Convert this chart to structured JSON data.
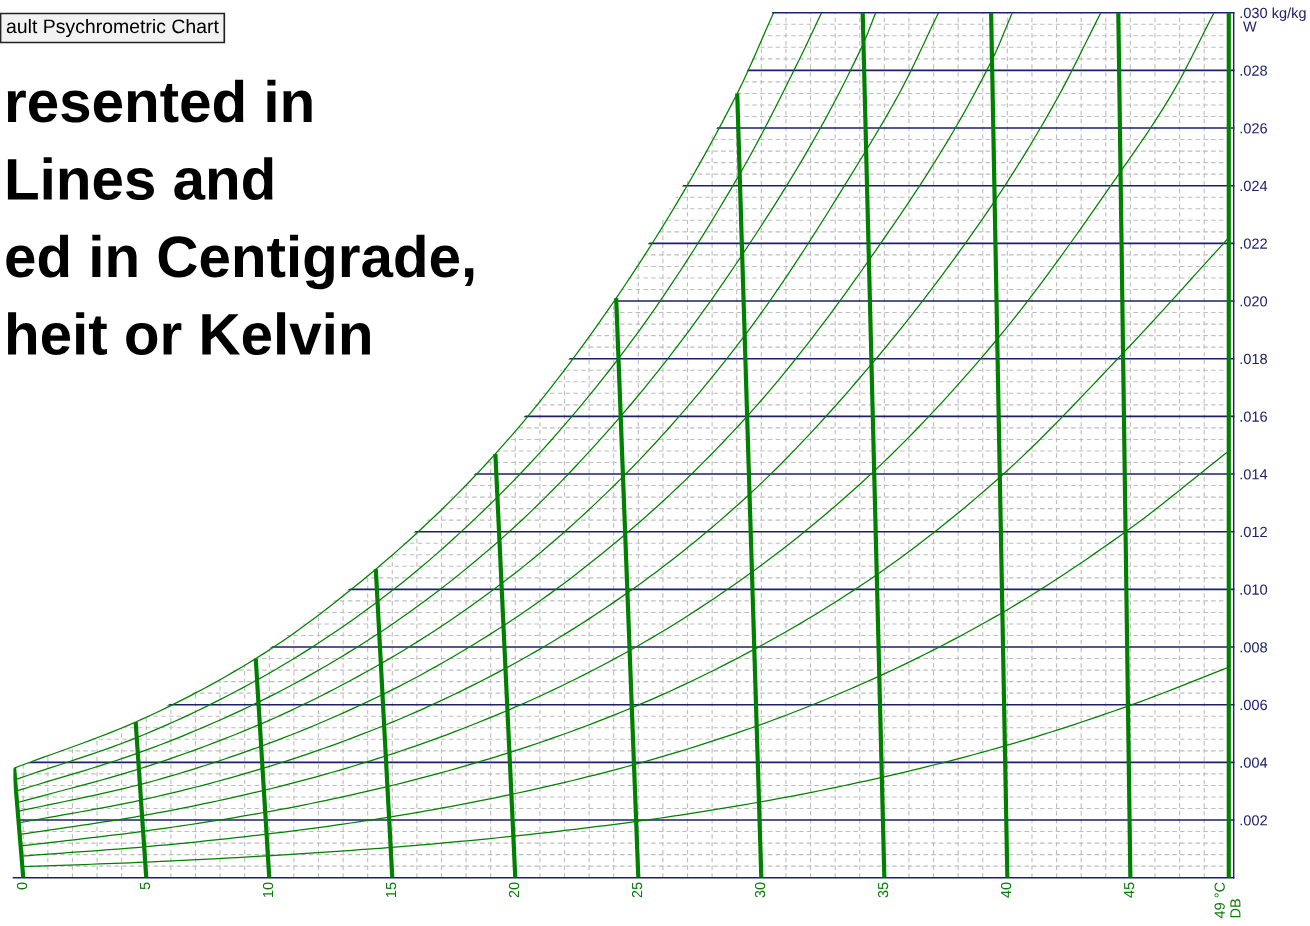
{
  "chart_data": {
    "type": "line",
    "title": "ault Psychrometric Chart",
    "annotations": [
      "resented in",
      "Lines and",
      "ed in Centigrade,",
      "heit or Kelvin"
    ],
    "ylabel": "W",
    "xlim": [
      -0.4,
      49.2
    ],
    "ylim": [
      0,
      0.03
    ],
    "xticks": [
      0,
      {
        "value": 1,
        "label": null
      },
      {
        "value": 2,
        "label": null
      },
      {
        "value": 3,
        "label": null
      },
      {
        "value": 4,
        "label": null
      },
      5,
      {
        "value": 6,
        "label": null
      },
      {
        "value": 7,
        "label": null
      },
      {
        "value": 8,
        "label": null
      },
      {
        "value": 9,
        "label": null
      },
      10,
      {
        "value": 11,
        "label": null
      },
      {
        "value": 12,
        "label": null
      },
      {
        "value": 13,
        "label": null
      },
      {
        "value": 14,
        "label": null
      },
      15,
      {
        "value": 16,
        "label": null
      },
      {
        "value": 17,
        "label": null
      },
      {
        "value": 18,
        "label": null
      },
      {
        "value": 19,
        "label": null
      },
      20,
      {
        "value": 21,
        "label": null
      },
      {
        "value": 22,
        "label": null
      },
      {
        "value": 23,
        "label": null
      },
      {
        "value": 24,
        "label": null
      },
      25,
      {
        "value": 26,
        "label": null
      },
      {
        "value": 27,
        "label": null
      },
      {
        "value": 28,
        "label": null
      },
      {
        "value": 29,
        "label": null
      },
      30,
      {
        "value": 31,
        "label": null
      },
      {
        "value": 32,
        "label": null
      },
      {
        "value": 33,
        "label": null
      },
      {
        "value": 34,
        "label": null
      },
      35,
      {
        "value": 36,
        "label": null
      },
      {
        "value": 37,
        "label": null
      },
      {
        "value": 38,
        "label": null
      },
      {
        "value": 39,
        "label": null
      },
      40,
      {
        "value": 41,
        "label": null
      },
      {
        "value": 42,
        "label": null
      },
      {
        "value": 43,
        "label": null
      },
      {
        "value": 44,
        "label": null
      },
      45,
      {
        "value": 46,
        "label": null
      },
      {
        "value": 47,
        "label": null
      },
      {
        "value": 48,
        "label": null
      },
      {
        "value": 49,
        "label": "49 °C\nDB"
      }
    ],
    "yticks": [
      {
        "value": 0.0004,
        "label": null
      },
      {
        "value": 0.0008,
        "label": null
      },
      {
        "value": 0.0012,
        "label": null
      },
      {
        "value": 0.0016,
        "label": null
      },
      {
        "value": 0.002,
        "label": ".002"
      },
      {
        "value": 0.0024,
        "label": null
      },
      {
        "value": 0.0028,
        "label": null
      },
      {
        "value": 0.0032,
        "label": null
      },
      {
        "value": 0.0036,
        "label": null
      },
      {
        "value": 0.004,
        "label": ".004"
      },
      {
        "value": 0.0044,
        "label": null
      },
      {
        "value": 0.0048,
        "label": null
      },
      {
        "value": 0.0052,
        "label": null
      },
      {
        "value": 0.0056,
        "label": null
      },
      {
        "value": 0.006,
        "label": ".006"
      },
      {
        "value": 0.0064,
        "label": null
      },
      {
        "value": 0.0068,
        "label": null
      },
      {
        "value": 0.0072,
        "label": null
      },
      {
        "value": 0.0076,
        "label": null
      },
      {
        "value": 0.008,
        "label": ".008"
      },
      {
        "value": 0.0084,
        "label": null
      },
      {
        "value": 0.0088,
        "label": null
      },
      {
        "value": 0.0092,
        "label": null
      },
      {
        "value": 0.0096,
        "label": null
      },
      {
        "value": 0.01,
        "label": ".010"
      },
      {
        "value": 0.0104,
        "label": null
      },
      {
        "value": 0.0108,
        "label": null
      },
      {
        "value": 0.0112,
        "label": null
      },
      {
        "value": 0.0116,
        "label": null
      },
      {
        "value": 0.012,
        "label": ".012"
      },
      {
        "value": 0.0124,
        "label": null
      },
      {
        "value": 0.0128,
        "label": null
      },
      {
        "value": 0.0132,
        "label": null
      },
      {
        "value": 0.0136,
        "label": null
      },
      {
        "value": 0.014,
        "label": ".014"
      },
      {
        "value": 0.0144,
        "label": null
      },
      {
        "value": 0.0148,
        "label": null
      },
      {
        "value": 0.0152,
        "label": null
      },
      {
        "value": 0.0156,
        "label": null
      },
      {
        "value": 0.016,
        "label": ".016"
      },
      {
        "value": 0.0164,
        "label": null
      },
      {
        "value": 0.0168,
        "label": null
      },
      {
        "value": 0.0172,
        "label": null
      },
      {
        "value": 0.0176,
        "label": null
      },
      {
        "value": 0.018,
        "label": ".018"
      },
      {
        "value": 0.0184,
        "label": null
      },
      {
        "value": 0.0188,
        "label": null
      },
      {
        "value": 0.0192,
        "label": null
      },
      {
        "value": 0.0196,
        "label": null
      },
      {
        "value": 0.02,
        "label": ".020"
      },
      {
        "value": 0.0204,
        "label": null
      },
      {
        "value": 0.0208,
        "label": null
      },
      {
        "value": 0.0212,
        "label": null
      },
      {
        "value": 0.0216,
        "label": null
      },
      {
        "value": 0.022,
        "label": ".022"
      },
      {
        "value": 0.0224,
        "label": null
      },
      {
        "value": 0.0228,
        "label": null
      },
      {
        "value": 0.0232,
        "label": null
      },
      {
        "value": 0.0236,
        "label": null
      },
      {
        "value": 0.024,
        "label": ".024"
      },
      {
        "value": 0.0244,
        "label": null
      },
      {
        "value": 0.0248,
        "label": null
      },
      {
        "value": 0.0252,
        "label": null
      },
      {
        "value": 0.0256,
        "label": null
      },
      {
        "value": 0.026,
        "label": ".026"
      },
      {
        "value": 0.0264,
        "label": null
      },
      {
        "value": 0.0268,
        "label": null
      },
      {
        "value": 0.0272,
        "label": null
      },
      {
        "value": 0.0276,
        "label": null
      },
      {
        "value": 0.028,
        "label": ".028"
      },
      {
        "value": 0.0284,
        "label": null
      },
      {
        "value": 0.0288,
        "label": null
      },
      {
        "value": 0.0292,
        "label": null
      },
      {
        "value": 0.0296,
        "label": null
      },
      {
        "value": 0.03,
        "label": ".030 kg/kg"
      }
    ],
    "grid": true,
    "series": [
      {
        "color": "#008000",
        "x": [
          -0.37,
          4.57,
          9.45,
          14.33,
          19.19,
          24.1,
          29.02,
          30.5
        ],
        "values": [
          0.0038,
          0.0054,
          0.0076,
          0.0107,
          0.0147,
          0.0201,
          0.0272,
          0.03
        ]
      },
      {
        "color": "#008000",
        "x": [
          -0.33,
          4.61,
          9.51,
          14.4,
          19.27,
          24.19,
          29.12,
          31.5,
          32.45
        ],
        "values": [
          0.0034,
          0.00486,
          0.00686,
          0.00957,
          0.0132,
          0.018,
          0.0244,
          0.0283,
          0.03
        ]
      },
      {
        "color": "#008000",
        "x": [
          -0.3,
          4.65,
          9.56,
          14.47,
          19.36,
          24.28,
          29.22,
          34.13,
          34.65
        ],
        "values": [
          0.003,
          0.00432,
          0.00609,
          0.00849,
          0.0117,
          0.016,
          0.0216,
          0.0289,
          0.03
        ]
      },
      {
        "color": "#008000",
        "x": [
          -0.26,
          4.7,
          9.62,
          14.53,
          19.44,
          24.37,
          29.32,
          34.24,
          35.73,
          37.2
        ],
        "values": [
          0.0026,
          0.00377,
          0.00532,
          0.00742,
          0.0102,
          0.0139,
          0.0188,
          0.0252,
          0.0274,
          0.03
        ]
      },
      {
        "color": "#008000",
        "x": [
          -0.22,
          4.74,
          9.67,
          14.6,
          19.52,
          24.46,
          29.42,
          34.36,
          39.4,
          40.2
        ],
        "values": [
          0.0023,
          0.00323,
          0.00456,
          0.00635,
          0.00874,
          0.0119,
          0.016,
          0.0214,
          0.0284,
          0.03
        ]
      },
      {
        "color": "#008000",
        "x": [
          -0.19,
          4.78,
          9.73,
          14.67,
          19.6,
          24.56,
          29.52,
          34.47,
          39.51,
          42.01,
          43.8
        ],
        "values": [
          0.0019,
          0.00269,
          0.00379,
          0.00528,
          0.00726,
          0.00988,
          0.0133,
          0.0178,
          0.0235,
          0.027,
          0.03
        ]
      },
      {
        "color": "#008000",
        "x": [
          -0.15,
          4.83,
          9.78,
          14.73,
          19.68,
          24.65,
          29.62,
          34.58,
          39.61,
          44.61,
          46.7,
          48.4
        ],
        "values": [
          0.0015,
          0.00215,
          0.00303,
          0.00422,
          0.0058,
          0.00788,
          0.0106,
          0.0141,
          0.0187,
          0.0245,
          0.0272,
          0.03
        ]
      },
      {
        "color": "#008000",
        "x": [
          -0.11,
          4.87,
          9.84,
          14.8,
          19.76,
          24.73,
          29.71,
          34.68,
          39.71,
          44.71,
          49
        ],
        "values": [
          0.0011,
          0.00161,
          0.00227,
          0.00316,
          0.00434,
          0.00589,
          0.00792,
          0.0105,
          0.0139,
          0.0182,
          0.0222
        ]
      },
      {
        "color": "#008000",
        "x": [
          -0.07,
          4.91,
          9.89,
          14.87,
          19.84,
          24.82,
          29.81,
          34.79,
          39.81,
          44.81,
          49
        ],
        "values": [
          0.00075,
          0.00107,
          0.00151,
          0.0021,
          0.00289,
          0.00392,
          0.00526,
          0.00699,
          0.0092,
          0.012,
          0.0148
        ]
      },
      {
        "color": "#008000",
        "x": [
          -0.04,
          4.96,
          9.95,
          14.93,
          19.92,
          24.91,
          29.91,
          34.9,
          39.9,
          44.9,
          49
        ],
        "values": [
          0.00038,
          0.00054,
          0.00076,
          0.00105,
          0.00144,
          0.00195,
          0.00262,
          0.00348,
          0.00457,
          0.00595,
          0.0073
        ]
      },
      {
        "color": "#008000",
        "x": [
          0,
          -0.37
        ],
        "values": [
          0,
          0.0038
        ]
      },
      {
        "color": "#008000",
        "x": [
          5,
          4.57
        ],
        "values": [
          0,
          0.0054
        ]
      },
      {
        "color": "#008000",
        "x": [
          10,
          9.45
        ],
        "values": [
          0,
          0.0076
        ]
      },
      {
        "color": "#008000",
        "x": [
          15,
          14.33
        ],
        "values": [
          0,
          0.0107
        ]
      },
      {
        "color": "#008000",
        "x": [
          20,
          19.19
        ],
        "values": [
          0,
          0.0147
        ]
      },
      {
        "color": "#008000",
        "x": [
          25,
          24.1
        ],
        "values": [
          0,
          0.0201
        ]
      },
      {
        "color": "#008000",
        "x": [
          30,
          29.02
        ],
        "values": [
          0,
          0.0272
        ]
      },
      {
        "color": "#008000",
        "x": [
          35,
          34.12
        ],
        "values": [
          0,
          0.03
        ]
      },
      {
        "color": "#008000",
        "x": [
          40,
          39.34
        ],
        "values": [
          0,
          0.03
        ]
      },
      {
        "color": "#008000",
        "x": [
          45,
          44.51
        ],
        "values": [
          0,
          0.03
        ]
      },
      {
        "color": "#008000",
        "x": [
          49,
          49
        ],
        "values": [
          0,
          0.03
        ]
      }
    ]
  }
}
